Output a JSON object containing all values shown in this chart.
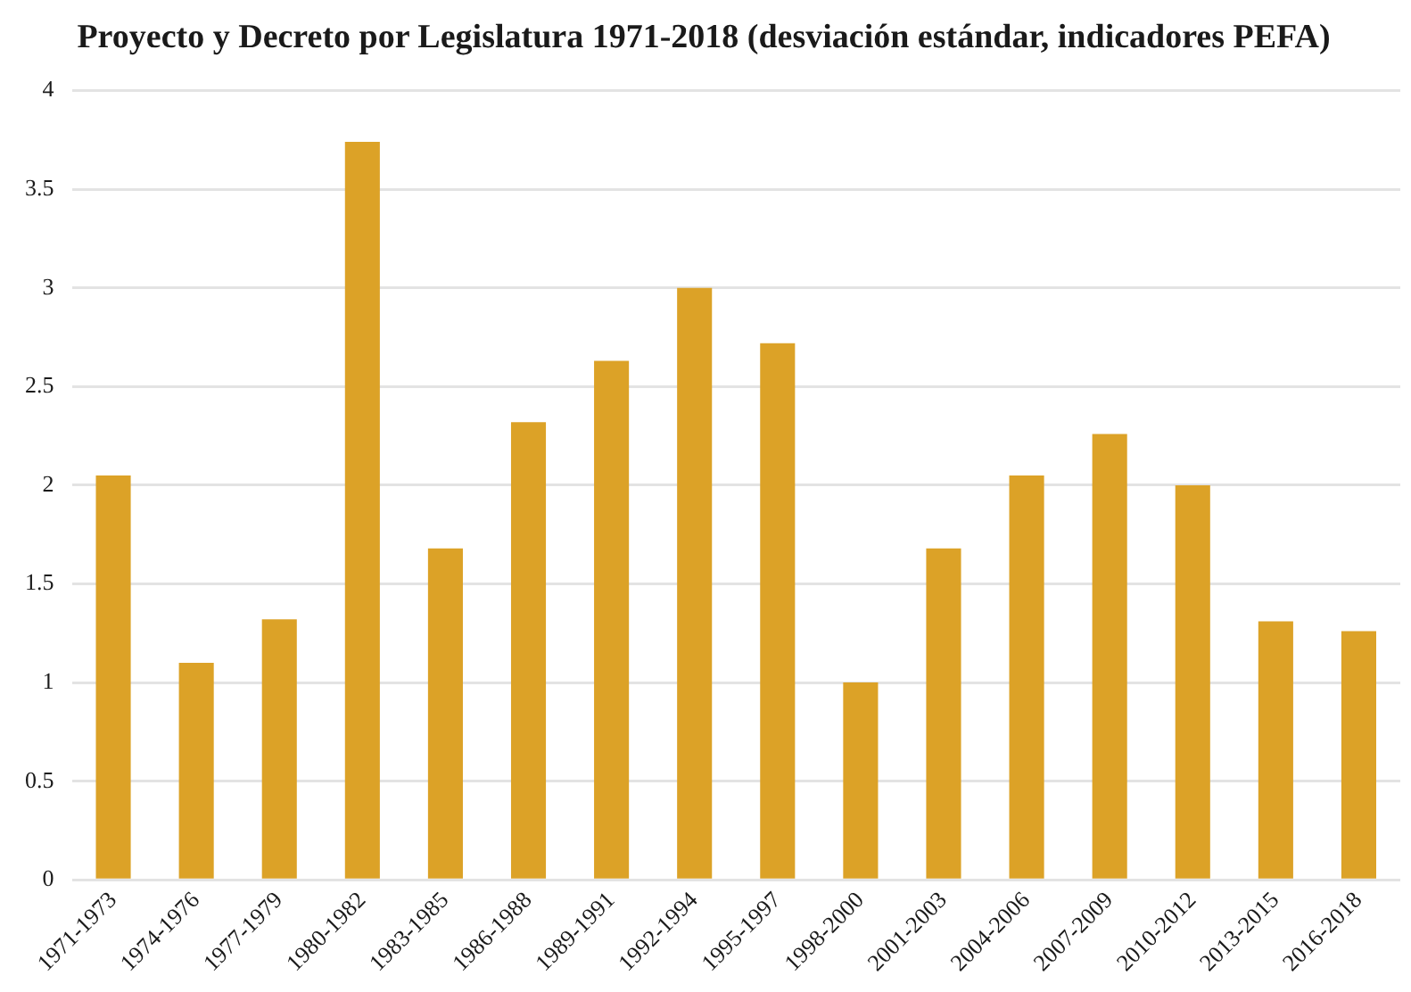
{
  "chart_data": {
    "type": "bar",
    "title": "Proyecto y Decreto por Legislatura 1971-2018 (desviación estándar, indicadores PEFA)",
    "categories": [
      "1971-1973",
      "1974-1976",
      "1977-1979",
      "1980-1982",
      "1983-1985",
      "1986-1988",
      "1989-1991",
      "1992-1994",
      "1995-1997",
      "1998-2000",
      "2001-2003",
      "2004-2006",
      "2007-2009",
      "2010-2012",
      "2013-2015",
      "2016-2018"
    ],
    "values": [
      2.05,
      1.1,
      1.32,
      3.74,
      1.68,
      2.32,
      2.63,
      3.0,
      2.72,
      1.0,
      1.68,
      2.05,
      2.26,
      2.0,
      1.31,
      1.26
    ],
    "color": "#dca227",
    "ylim": [
      0,
      4
    ],
    "yticks": [
      0,
      0.5,
      1,
      1.5,
      2,
      2.5,
      3,
      3.5,
      4
    ],
    "grid": "y"
  }
}
